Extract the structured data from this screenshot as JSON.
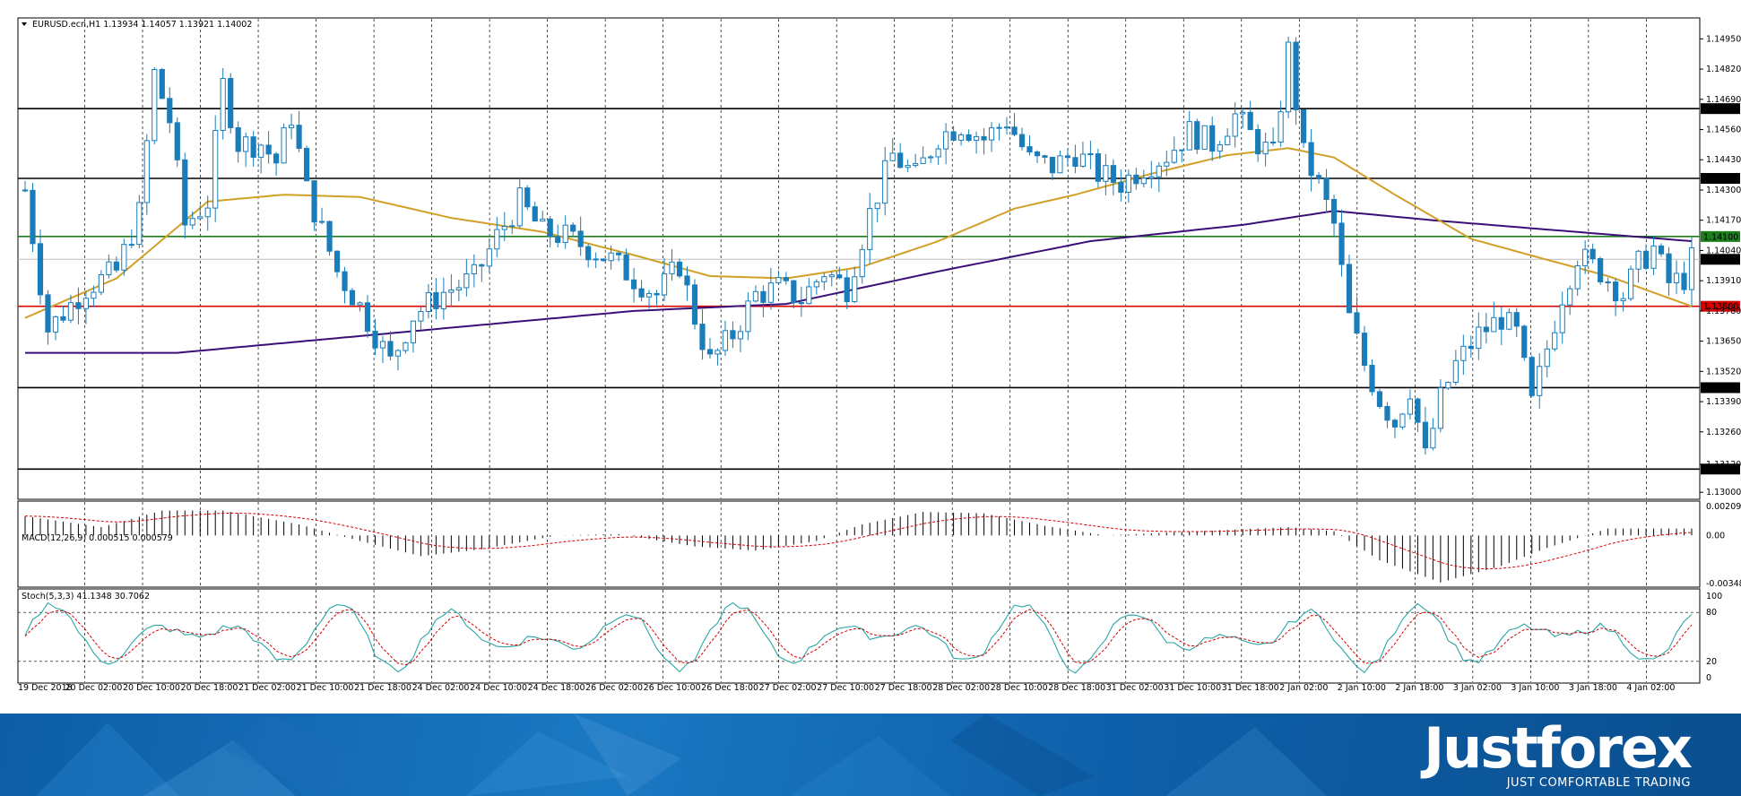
{
  "chart_data": {
    "type": "candlestick",
    "symbol_info": "EURUSD.ecn,H1  1.13934 1.14057 1.13921 1.14002",
    "price_axis": {
      "ylim": [
        1.1297,
        1.1504
      ],
      "ticks": [
        "1.14950",
        "1.14820",
        "1.14690",
        "1.14560",
        "1.14430",
        "1.14300",
        "1.14170",
        "1.14040",
        "1.13910",
        "1.13780",
        "1.13650",
        "1.13520",
        "1.13390",
        "1.13260",
        "1.13120",
        "1.13000"
      ]
    },
    "levels": [
      {
        "label": "1.14650",
        "price": 1.1465,
        "color": "#000000"
      },
      {
        "label": "1.14350",
        "price": 1.1435,
        "color": "#000000"
      },
      {
        "label": "1.14100",
        "price": 1.141,
        "color": "#1b7d1b"
      },
      {
        "label": "1.13800",
        "price": 1.138,
        "color": "#d40000"
      },
      {
        "label": "1.13450",
        "price": 1.1345,
        "color": "#000000"
      },
      {
        "label": "1.13100",
        "price": 1.131,
        "color": "#000000"
      }
    ],
    "current_price": {
      "label": "1.14002",
      "price": 1.14002
    },
    "time_labels": [
      "19 Dec 2018",
      "20 Dec 02:00",
      "20 Dec 10:00",
      "20 Dec 18:00",
      "21 Dec 02:00",
      "21 Dec 10:00",
      "21 Dec 18:00",
      "24 Dec 02:00",
      "24 Dec 10:00",
      "24 Dec 18:00",
      "26 Dec 02:00",
      "26 Dec 10:00",
      "26 Dec 18:00",
      "27 Dec 02:00",
      "27 Dec 10:00",
      "27 Dec 18:00",
      "28 Dec 02:00",
      "28 Dec 10:00",
      "28 Dec 18:00",
      "31 Dec 02:00",
      "31 Dec 10:00",
      "31 Dec 18:00",
      "2 Jan 02:00",
      "2 Jan 10:00",
      "2 Jan 18:00",
      "3 Jan 02:00",
      "3 Jan 10:00",
      "3 Jan 18:00",
      "4 Jan 02:00"
    ],
    "price_anchors": [
      [
        0,
        1.143
      ],
      [
        3,
        1.137
      ],
      [
        8,
        1.1388
      ],
      [
        12,
        1.1395
      ],
      [
        15,
        1.142
      ],
      [
        17,
        1.148
      ],
      [
        19,
        1.146
      ],
      [
        21,
        1.1415
      ],
      [
        24,
        1.1425
      ],
      [
        26,
        1.1475
      ],
      [
        28,
        1.145
      ],
      [
        31,
        1.145
      ],
      [
        33,
        1.1442
      ],
      [
        35,
        1.1462
      ],
      [
        37,
        1.143
      ],
      [
        41,
        1.1395
      ],
      [
        44,
        1.138
      ],
      [
        48,
        1.1356
      ],
      [
        51,
        1.1376
      ],
      [
        55,
        1.1386
      ],
      [
        59,
        1.1392
      ],
      [
        62,
        1.141
      ],
      [
        65,
        1.1425
      ],
      [
        68,
        1.1412
      ],
      [
        71,
        1.141
      ],
      [
        74,
        1.1405
      ],
      [
        77,
        1.14
      ],
      [
        80,
        1.1392
      ],
      [
        83,
        1.1385
      ],
      [
        86,
        1.1398
      ],
      [
        88,
        1.1375
      ],
      [
        90,
        1.1356
      ],
      [
        93,
        1.1368
      ],
      [
        96,
        1.1385
      ],
      [
        99,
        1.1388
      ],
      [
        102,
        1.1383
      ],
      [
        105,
        1.1395
      ],
      [
        108,
        1.1388
      ],
      [
        111,
        1.142
      ],
      [
        114,
        1.1445
      ],
      [
        117,
        1.1436
      ],
      [
        120,
        1.1453
      ],
      [
        123,
        1.1458
      ],
      [
        126,
        1.1452
      ],
      [
        129,
        1.146
      ],
      [
        132,
        1.1443
      ],
      [
        135,
        1.144
      ],
      [
        138,
        1.1446
      ],
      [
        141,
        1.1437
      ],
      [
        144,
        1.1433
      ],
      [
        147,
        1.144
      ],
      [
        150,
        1.1445
      ],
      [
        153,
        1.1455
      ],
      [
        156,
        1.145
      ],
      [
        159,
        1.1462
      ],
      [
        162,
        1.145
      ],
      [
        164,
        1.1445
      ],
      [
        166,
        1.149
      ],
      [
        168,
        1.1445
      ],
      [
        170,
        1.1432
      ],
      [
        172,
        1.1415
      ],
      [
        174,
        1.1375
      ],
      [
        176,
        1.1355
      ],
      [
        178,
        1.134
      ],
      [
        180,
        1.133
      ],
      [
        182,
        1.1345
      ],
      [
        184,
        1.1315
      ],
      [
        186,
        1.134
      ],
      [
        188,
        1.1355
      ],
      [
        191,
        1.1368
      ],
      [
        194,
        1.1375
      ],
      [
        196,
        1.1368
      ],
      [
        198,
        1.1338
      ],
      [
        200,
        1.1362
      ],
      [
        202,
        1.1385
      ],
      [
        204,
        1.1402
      ],
      [
        207,
        1.1395
      ],
      [
        210,
        1.1385
      ],
      [
        212,
        1.1398
      ],
      [
        214,
        1.1405
      ],
      [
        216,
        1.139
      ],
      [
        218,
        1.1392
      ],
      [
        219,
        1.14
      ]
    ],
    "ma_fast_anchors": [
      [
        0,
        1.1375
      ],
      [
        12,
        1.1392
      ],
      [
        24,
        1.1425
      ],
      [
        34,
        1.1428
      ],
      [
        44,
        1.1427
      ],
      [
        56,
        1.1418
      ],
      [
        68,
        1.1412
      ],
      [
        80,
        1.1402
      ],
      [
        90,
        1.1393
      ],
      [
        100,
        1.1392
      ],
      [
        110,
        1.1397
      ],
      [
        120,
        1.1408
      ],
      [
        130,
        1.1422
      ],
      [
        138,
        1.1428
      ],
      [
        148,
        1.1437
      ],
      [
        158,
        1.1445
      ],
      [
        166,
        1.1448
      ],
      [
        172,
        1.1444
      ],
      [
        180,
        1.1428
      ],
      [
        190,
        1.1409
      ],
      [
        200,
        1.14
      ],
      [
        208,
        1.1393
      ],
      [
        219,
        1.138
      ]
    ],
    "ma_slow_anchors": [
      [
        0,
        1.136
      ],
      [
        20,
        1.136
      ],
      [
        40,
        1.1366
      ],
      [
        60,
        1.1372
      ],
      [
        80,
        1.1378
      ],
      [
        100,
        1.1381
      ],
      [
        120,
        1.1395
      ],
      [
        140,
        1.1408
      ],
      [
        160,
        1.1415
      ],
      [
        172,
        1.1421
      ],
      [
        185,
        1.1417
      ],
      [
        200,
        1.1413
      ],
      [
        219,
        1.1408
      ]
    ],
    "macd": {
      "label": "MACD(12,26,9) 0.000515 0.000579",
      "ticks": [
        "0.002095",
        "0.00",
        "-0.003483"
      ],
      "ylim": [
        -0.003483,
        0.002095
      ],
      "anchors": [
        [
          0,
          0.0014
        ],
        [
          10,
          0.0006
        ],
        [
          18,
          0.0018
        ],
        [
          26,
          0.0018
        ],
        [
          36,
          0.0008
        ],
        [
          44,
          -0.0004
        ],
        [
          52,
          -0.0015
        ],
        [
          60,
          -0.001
        ],
        [
          70,
          0.0
        ],
        [
          78,
          0.0001
        ],
        [
          88,
          -0.0008
        ],
        [
          96,
          -0.0011
        ],
        [
          104,
          -0.0004
        ],
        [
          110,
          0.0008
        ],
        [
          118,
          0.0017
        ],
        [
          126,
          0.0016
        ],
        [
          134,
          0.0007
        ],
        [
          142,
          0.0
        ],
        [
          150,
          0.0002
        ],
        [
          158,
          0.0004
        ],
        [
          166,
          0.0006
        ],
        [
          172,
          0.0003
        ],
        [
          178,
          -0.0018
        ],
        [
          186,
          -0.0034
        ],
        [
          194,
          -0.0022
        ],
        [
          200,
          -0.0009
        ],
        [
          208,
          0.0005
        ],
        [
          219,
          0.0005
        ]
      ]
    },
    "stochastic": {
      "label": "Stoch(5,3,3) 41.1348 30.7062",
      "ticks": [
        "100",
        "80",
        "20",
        "0"
      ],
      "ylim": [
        0,
        100
      ],
      "levels": [
        80,
        20
      ]
    }
  }
}
